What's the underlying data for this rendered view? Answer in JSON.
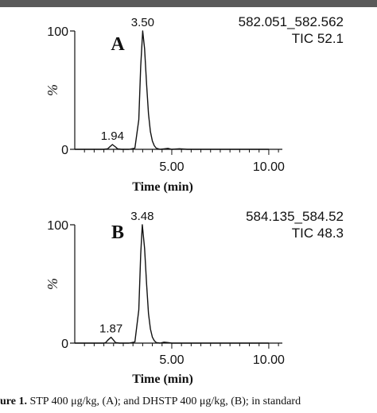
{
  "chart_data": [
    {
      "type": "line",
      "panel_label": "A",
      "mass_range": "582.051_582.562",
      "tic": "TIC 52.1",
      "xlabel": "Time (min)",
      "ylabel": "%",
      "xlim": [
        0,
        10.7
      ],
      "ylim": [
        0,
        100
      ],
      "x_ticks": [
        "5.00",
        "10.00"
      ],
      "y_ticks": [
        "0",
        "100"
      ],
      "peaks": [
        {
          "time": 1.94,
          "label": "1.94",
          "height": 4
        },
        {
          "time": 3.5,
          "label": "3.50",
          "height": 100
        }
      ],
      "series": [
        {
          "x": [
            0.0,
            0.5,
            1.0,
            1.5,
            1.7,
            1.8,
            1.94,
            2.1,
            2.2,
            2.4,
            2.8,
            3.1,
            3.3,
            3.4,
            3.5,
            3.6,
            3.7,
            3.8,
            3.9,
            4.0,
            4.1,
            4.2,
            4.4,
            4.6,
            4.8,
            5.0,
            5.4,
            5.8,
            6.0,
            6.4,
            7.0,
            8.0,
            9.0,
            10.0
          ],
          "y": [
            0,
            0,
            0,
            0,
            0.5,
            2,
            4,
            2,
            0.5,
            0,
            0,
            1,
            25,
            70,
            100,
            85,
            55,
            30,
            15,
            7,
            3,
            1,
            0,
            0.4,
            0.8,
            0,
            0.5,
            0,
            0,
            0,
            0,
            0,
            0,
            0
          ]
        }
      ]
    },
    {
      "type": "line",
      "panel_label": "B",
      "mass_range": "584.135_584.52",
      "tic": "TIC 48.3",
      "xlabel": "Time (min)",
      "ylabel": "%",
      "xlim": [
        0,
        10.7
      ],
      "ylim": [
        0,
        100
      ],
      "x_ticks": [
        "5.00",
        "10.00"
      ],
      "y_ticks": [
        "0",
        "100"
      ],
      "peaks": [
        {
          "time": 1.87,
          "label": "1.87",
          "height": 5
        },
        {
          "time": 3.48,
          "label": "3.48",
          "height": 100
        }
      ],
      "series": [
        {
          "x": [
            0.0,
            0.5,
            1.0,
            1.5,
            1.6,
            1.7,
            1.87,
            2.0,
            2.1,
            2.3,
            2.8,
            3.1,
            3.3,
            3.4,
            3.48,
            3.6,
            3.7,
            3.8,
            3.9,
            4.0,
            4.1,
            4.2,
            4.4,
            4.6,
            4.8,
            5.0,
            5.4,
            6.0,
            7.0,
            8.0,
            9.0,
            10.0
          ],
          "y": [
            0,
            0,
            0,
            0,
            0.5,
            2.5,
            5,
            2.5,
            0.5,
            0,
            0,
            1,
            28,
            75,
            100,
            80,
            50,
            25,
            12,
            5,
            2,
            0.5,
            0,
            0.8,
            0.5,
            0,
            0,
            0,
            0,
            0,
            0,
            0
          ]
        }
      ]
    }
  ],
  "caption": {
    "prefix": "ure 1.",
    "text": "STP 400 μg/kg, (A); and DHSTP 400 μg/kg, (B); in standard"
  }
}
